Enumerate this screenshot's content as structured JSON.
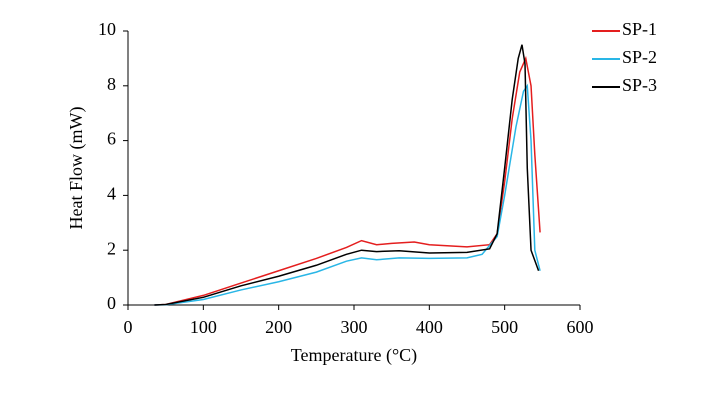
{
  "chart_data": {
    "type": "line",
    "x_label": "Temperature (°C)",
    "y_label": "Heat Flow (mW)",
    "xlim": [
      0,
      600
    ],
    "xticks": [
      0,
      100,
      200,
      300,
      400,
      500,
      600
    ],
    "ylim": [
      0,
      10
    ],
    "yticks": [
      0,
      2,
      4,
      6,
      8,
      10
    ],
    "grid": false,
    "legend": "right",
    "series": [
      {
        "name": "SP-1",
        "color": "#e41e1e",
        "x": [
          35,
          50,
          100,
          150,
          200,
          250,
          290,
          310,
          330,
          350,
          380,
          400,
          450,
          480,
          490,
          500,
          510,
          520,
          528,
          535,
          540,
          547
        ],
        "values": [
          0,
          0.02,
          0.35,
          0.8,
          1.25,
          1.7,
          2.1,
          2.35,
          2.2,
          2.25,
          2.3,
          2.2,
          2.12,
          2.2,
          2.6,
          4.5,
          6.8,
          8.5,
          9.0,
          8.0,
          5.5,
          2.65
        ]
      },
      {
        "name": "SP-2",
        "color": "#29b6e6",
        "x": [
          35,
          50,
          100,
          150,
          200,
          250,
          290,
          310,
          330,
          360,
          400,
          450,
          470,
          490,
          500,
          515,
          525,
          530,
          535,
          540,
          547
        ],
        "values": [
          0,
          0.01,
          0.2,
          0.55,
          0.85,
          1.2,
          1.6,
          1.72,
          1.65,
          1.72,
          1.7,
          1.72,
          1.85,
          2.5,
          4.0,
          6.5,
          7.8,
          8.0,
          6.0,
          2.0,
          1.25
        ]
      },
      {
        "name": "SP-3",
        "color": "#000000",
        "x": [
          35,
          50,
          100,
          150,
          200,
          250,
          290,
          310,
          330,
          360,
          400,
          450,
          480,
          490,
          500,
          510,
          518,
          523,
          527,
          530,
          535,
          545
        ],
        "values": [
          0,
          0.02,
          0.28,
          0.7,
          1.05,
          1.45,
          1.85,
          2.0,
          1.95,
          1.98,
          1.9,
          1.92,
          2.05,
          2.6,
          5.0,
          7.5,
          9.0,
          9.5,
          8.8,
          5.0,
          2.0,
          1.25
        ]
      }
    ]
  }
}
